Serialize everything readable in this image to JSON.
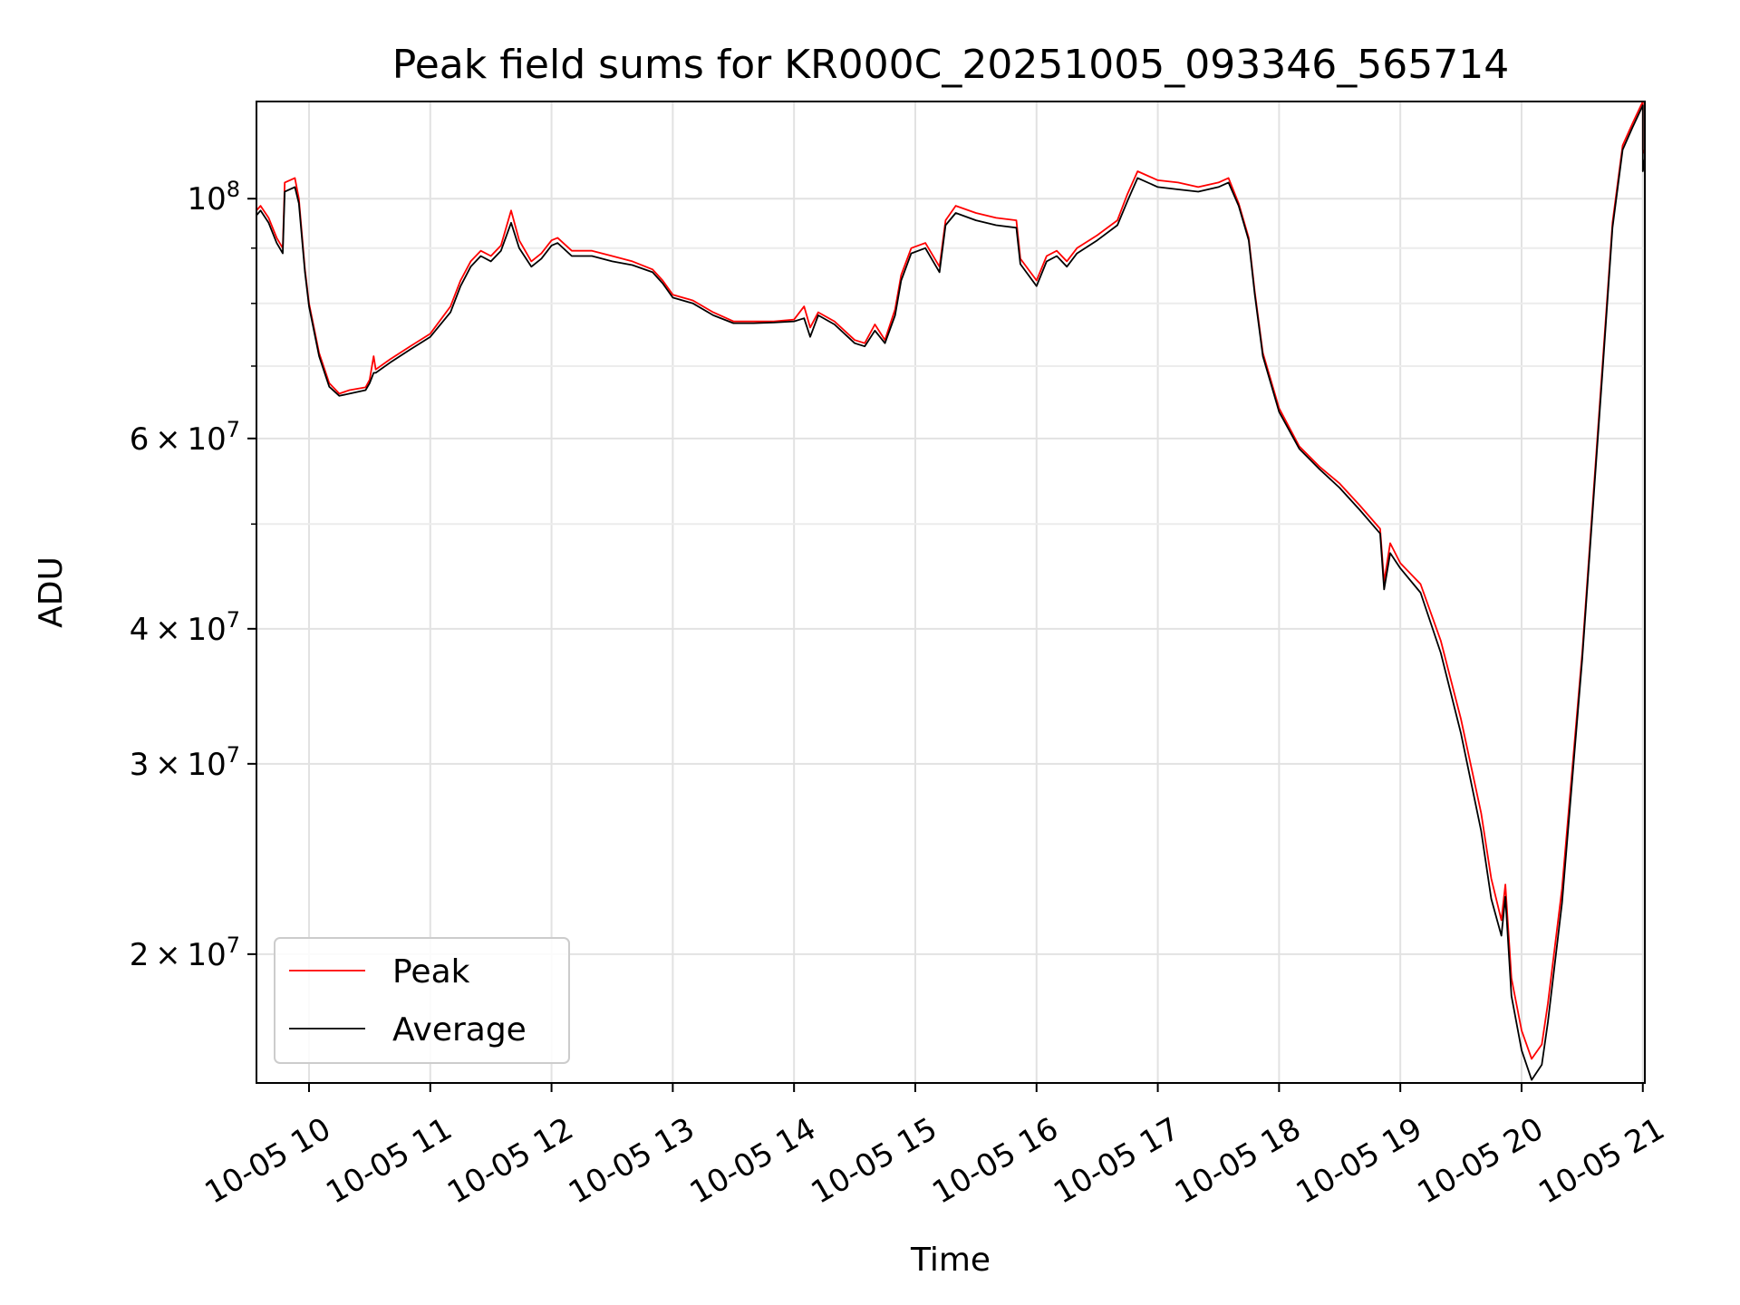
{
  "chart_data": {
    "type": "line",
    "title": "Peak field sums for KR000C_20251005_093346_565714",
    "xlabel": "Time",
    "ylabel": "ADU",
    "yscale": "log",
    "xlim": [
      "2025-10-05 09:34",
      "2025-10-05 21:01"
    ],
    "ylim": [
      15200000,
      123000000
    ],
    "grid": true,
    "legend_position": "lower-left",
    "x_tick_labels": [
      "10-05 10",
      "10-05 11",
      "10-05 12",
      "10-05 13",
      "10-05 14",
      "10-05 15",
      "10-05 16",
      "10-05 17",
      "10-05 18",
      "10-05 19",
      "10-05 20",
      "10-05 21"
    ],
    "x_tick_values": [
      "2025-10-05 10:00",
      "2025-10-05 11:00",
      "2025-10-05 12:00",
      "2025-10-05 13:00",
      "2025-10-05 14:00",
      "2025-10-05 15:00",
      "2025-10-05 16:00",
      "2025-10-05 17:00",
      "2025-10-05 18:00",
      "2025-10-05 19:00",
      "2025-10-05 20:00",
      "2025-10-05 21:00"
    ],
    "y_ticks_major": [
      {
        "value": 20000000,
        "mantissa": "2",
        "base": "10",
        "exp": "7"
      },
      {
        "value": 30000000,
        "mantissa": "3",
        "base": "10",
        "exp": "7"
      },
      {
        "value": 40000000,
        "mantissa": "4",
        "base": "10",
        "exp": "7"
      },
      {
        "value": 60000000,
        "mantissa": "6",
        "base": "10",
        "exp": "7"
      },
      {
        "value": 100000000,
        "mantissa": "",
        "base": "10",
        "exp": "8"
      }
    ],
    "y_ticks_minor": [
      50000000,
      70000000,
      80000000,
      90000000
    ],
    "series": [
      {
        "name": "Peak",
        "color": "#ff0000",
        "points": [
          [
            "2025-10-05 09:34",
            97500000
          ],
          [
            "2025-10-05 09:36",
            98500000
          ],
          [
            "2025-10-05 09:40",
            96000000
          ],
          [
            "2025-10-05 09:44",
            92000000
          ],
          [
            "2025-10-05 09:47",
            90000000
          ],
          [
            "2025-10-05 09:48",
            103500000
          ],
          [
            "2025-10-05 09:53",
            104500000
          ],
          [
            "2025-10-05 09:55",
            100000000
          ],
          [
            "2025-10-05 09:58",
            86000000
          ],
          [
            "2025-10-05 10:00",
            80000000
          ],
          [
            "2025-10-05 10:05",
            72000000
          ],
          [
            "2025-10-05 10:10",
            67500000
          ],
          [
            "2025-10-05 10:15",
            66000000
          ],
          [
            "2025-10-05 10:20",
            66500000
          ],
          [
            "2025-10-05 10:28",
            66900000
          ],
          [
            "2025-10-05 10:30",
            68000000
          ],
          [
            "2025-10-05 10:32",
            71500000
          ],
          [
            "2025-10-05 10:33",
            69500000
          ],
          [
            "2025-10-05 10:40",
            71000000
          ],
          [
            "2025-10-05 10:50",
            73000000
          ],
          [
            "2025-10-05 11:00",
            75000000
          ],
          [
            "2025-10-05 11:10",
            79500000
          ],
          [
            "2025-10-05 11:15",
            84000000
          ],
          [
            "2025-10-05 11:20",
            87500000
          ],
          [
            "2025-10-05 11:25",
            89500000
          ],
          [
            "2025-10-05 11:30",
            88500000
          ],
          [
            "2025-10-05 11:35",
            90500000
          ],
          [
            "2025-10-05 11:40",
            97500000
          ],
          [
            "2025-10-05 11:44",
            91500000
          ],
          [
            "2025-10-05 11:50",
            87500000
          ],
          [
            "2025-10-05 11:55",
            89000000
          ],
          [
            "2025-10-05 12:00",
            91500000
          ],
          [
            "2025-10-05 12:03",
            92000000
          ],
          [
            "2025-10-05 12:10",
            89500000
          ],
          [
            "2025-10-05 12:20",
            89500000
          ],
          [
            "2025-10-05 12:30",
            88500000
          ],
          [
            "2025-10-05 12:40",
            87500000
          ],
          [
            "2025-10-05 12:50",
            86000000
          ],
          [
            "2025-10-05 12:55",
            84000000
          ],
          [
            "2025-10-05 13:00",
            81500000
          ],
          [
            "2025-10-05 13:10",
            80500000
          ],
          [
            "2025-10-05 13:20",
            78500000
          ],
          [
            "2025-10-05 13:30",
            77000000
          ],
          [
            "2025-10-05 13:40",
            77000000
          ],
          [
            "2025-10-05 13:50",
            77000000
          ],
          [
            "2025-10-05 14:00",
            77300000
          ],
          [
            "2025-10-05 14:05",
            79500000
          ],
          [
            "2025-10-05 14:08",
            76000000
          ],
          [
            "2025-10-05 14:12",
            78500000
          ],
          [
            "2025-10-05 14:20",
            77000000
          ],
          [
            "2025-10-05 14:30",
            74000000
          ],
          [
            "2025-10-05 14:35",
            73500000
          ],
          [
            "2025-10-05 14:40",
            76500000
          ],
          [
            "2025-10-05 14:45",
            74000000
          ],
          [
            "2025-10-05 14:50",
            79000000
          ],
          [
            "2025-10-05 14:53",
            85000000
          ],
          [
            "2025-10-05 14:58",
            90000000
          ],
          [
            "2025-10-05 15:05",
            91000000
          ],
          [
            "2025-10-05 15:12",
            86500000
          ],
          [
            "2025-10-05 15:15",
            95500000
          ],
          [
            "2025-10-05 15:20",
            98500000
          ],
          [
            "2025-10-05 15:30",
            97000000
          ],
          [
            "2025-10-05 15:40",
            96000000
          ],
          [
            "2025-10-05 15:50",
            95500000
          ],
          [
            "2025-10-05 15:52",
            88000000
          ],
          [
            "2025-10-05 16:00",
            84000000
          ],
          [
            "2025-10-05 16:05",
            88500000
          ],
          [
            "2025-10-05 16:10",
            89500000
          ],
          [
            "2025-10-05 16:15",
            87500000
          ],
          [
            "2025-10-05 16:20",
            90000000
          ],
          [
            "2025-10-05 16:30",
            92500000
          ],
          [
            "2025-10-05 16:40",
            95500000
          ],
          [
            "2025-10-05 16:45",
            101000000
          ],
          [
            "2025-10-05 16:50",
            106000000
          ],
          [
            "2025-10-05 17:00",
            104000000
          ],
          [
            "2025-10-05 17:10",
            103500000
          ],
          [
            "2025-10-05 17:20",
            102500000
          ],
          [
            "2025-10-05 17:30",
            103500000
          ],
          [
            "2025-10-05 17:35",
            104500000
          ],
          [
            "2025-10-05 17:40",
            99000000
          ],
          [
            "2025-10-05 17:45",
            92000000
          ],
          [
            "2025-10-05 17:48",
            82000000
          ],
          [
            "2025-10-05 17:52",
            72000000
          ],
          [
            "2025-10-05 18:00",
            64000000
          ],
          [
            "2025-10-05 18:10",
            59000000
          ],
          [
            "2025-10-05 18:20",
            56500000
          ],
          [
            "2025-10-05 18:30",
            54500000
          ],
          [
            "2025-10-05 18:40",
            52000000
          ],
          [
            "2025-10-05 18:50",
            49500000
          ],
          [
            "2025-10-05 18:52",
            44200000
          ],
          [
            "2025-10-05 18:55",
            48000000
          ],
          [
            "2025-10-05 19:00",
            46000000
          ],
          [
            "2025-10-05 19:10",
            44000000
          ],
          [
            "2025-10-05 19:20",
            39000000
          ],
          [
            "2025-10-05 19:30",
            33000000
          ],
          [
            "2025-10-05 19:40",
            27000000
          ],
          [
            "2025-10-05 19:45",
            23500000
          ],
          [
            "2025-10-05 19:50",
            21500000
          ],
          [
            "2025-10-05 19:52",
            23200000
          ],
          [
            "2025-10-05 19:55",
            19000000
          ],
          [
            "2025-10-05 20:00",
            17000000
          ],
          [
            "2025-10-05 20:05",
            16000000
          ],
          [
            "2025-10-05 20:10",
            16500000
          ],
          [
            "2025-10-05 20:13",
            18000000
          ],
          [
            "2025-10-05 20:20",
            23000000
          ],
          [
            "2025-10-05 20:30",
            38000000
          ],
          [
            "2025-10-05 20:40",
            70000000
          ],
          [
            "2025-10-05 20:45",
            95000000
          ],
          [
            "2025-10-05 20:50",
            112000000
          ],
          [
            "2025-10-05 20:55",
            117500000
          ],
          [
            "2025-10-05 21:00",
            123000000
          ],
          [
            "2025-10-05 21:00",
            111000000
          ],
          [
            "2025-10-05 21:01",
            110000000
          ]
        ]
      },
      {
        "name": "Average",
        "color": "#000000",
        "points": [
          [
            "2025-10-05 09:34",
            96500000
          ],
          [
            "2025-10-05 09:36",
            97500000
          ],
          [
            "2025-10-05 09:40",
            95000000
          ],
          [
            "2025-10-05 09:44",
            91000000
          ],
          [
            "2025-10-05 09:47",
            89000000
          ],
          [
            "2025-10-05 09:48",
            101500000
          ],
          [
            "2025-10-05 09:53",
            102500000
          ],
          [
            "2025-10-05 09:55",
            99000000
          ],
          [
            "2025-10-05 09:58",
            85500000
          ],
          [
            "2025-10-05 10:00",
            79500000
          ],
          [
            "2025-10-05 10:05",
            71500000
          ],
          [
            "2025-10-05 10:10",
            67000000
          ],
          [
            "2025-10-05 10:15",
            65700000
          ],
          [
            "2025-10-05 10:20",
            66000000
          ],
          [
            "2025-10-05 10:28",
            66500000
          ],
          [
            "2025-10-05 10:30",
            67500000
          ],
          [
            "2025-10-05 10:32",
            69000000
          ],
          [
            "2025-10-05 10:33",
            69000000
          ],
          [
            "2025-10-05 10:40",
            70500000
          ],
          [
            "2025-10-05 10:50",
            72500000
          ],
          [
            "2025-10-05 11:00",
            74500000
          ],
          [
            "2025-10-05 11:10",
            78500000
          ],
          [
            "2025-10-05 11:15",
            83000000
          ],
          [
            "2025-10-05 11:20",
            86500000
          ],
          [
            "2025-10-05 11:25",
            88500000
          ],
          [
            "2025-10-05 11:30",
            87500000
          ],
          [
            "2025-10-05 11:35",
            89500000
          ],
          [
            "2025-10-05 11:40",
            95000000
          ],
          [
            "2025-10-05 11:44",
            90000000
          ],
          [
            "2025-10-05 11:50",
            86500000
          ],
          [
            "2025-10-05 11:55",
            88000000
          ],
          [
            "2025-10-05 12:00",
            90500000
          ],
          [
            "2025-10-05 12:03",
            91000000
          ],
          [
            "2025-10-05 12:10",
            88500000
          ],
          [
            "2025-10-05 12:20",
            88500000
          ],
          [
            "2025-10-05 12:30",
            87500000
          ],
          [
            "2025-10-05 12:40",
            86800000
          ],
          [
            "2025-10-05 12:50",
            85500000
          ],
          [
            "2025-10-05 12:55",
            83500000
          ],
          [
            "2025-10-05 13:00",
            81000000
          ],
          [
            "2025-10-05 13:10",
            80000000
          ],
          [
            "2025-10-05 13:20",
            78000000
          ],
          [
            "2025-10-05 13:30",
            76700000
          ],
          [
            "2025-10-05 13:40",
            76700000
          ],
          [
            "2025-10-05 13:50",
            76800000
          ],
          [
            "2025-10-05 14:00",
            77000000
          ],
          [
            "2025-10-05 14:05",
            77500000
          ],
          [
            "2025-10-05 14:08",
            74500000
          ],
          [
            "2025-10-05 14:12",
            78000000
          ],
          [
            "2025-10-05 14:20",
            76500000
          ],
          [
            "2025-10-05 14:30",
            73500000
          ],
          [
            "2025-10-05 14:35",
            73000000
          ],
          [
            "2025-10-05 14:40",
            75500000
          ],
          [
            "2025-10-05 14:45",
            73500000
          ],
          [
            "2025-10-05 14:50",
            78000000
          ],
          [
            "2025-10-05 14:53",
            84000000
          ],
          [
            "2025-10-05 14:58",
            89000000
          ],
          [
            "2025-10-05 15:05",
            90000000
          ],
          [
            "2025-10-05 15:12",
            85500000
          ],
          [
            "2025-10-05 15:15",
            94500000
          ],
          [
            "2025-10-05 15:20",
            97000000
          ],
          [
            "2025-10-05 15:30",
            95500000
          ],
          [
            "2025-10-05 15:40",
            94500000
          ],
          [
            "2025-10-05 15:50",
            94000000
          ],
          [
            "2025-10-05 15:52",
            87000000
          ],
          [
            "2025-10-05 16:00",
            83000000
          ],
          [
            "2025-10-05 16:05",
            87500000
          ],
          [
            "2025-10-05 16:10",
            88500000
          ],
          [
            "2025-10-05 16:15",
            86500000
          ],
          [
            "2025-10-05 16:20",
            89000000
          ],
          [
            "2025-10-05 16:30",
            91500000
          ],
          [
            "2025-10-05 16:40",
            94500000
          ],
          [
            "2025-10-05 16:45",
            99500000
          ],
          [
            "2025-10-05 16:50",
            104500000
          ],
          [
            "2025-10-05 17:00",
            102500000
          ],
          [
            "2025-10-05 17:10",
            102000000
          ],
          [
            "2025-10-05 17:20",
            101500000
          ],
          [
            "2025-10-05 17:30",
            102500000
          ],
          [
            "2025-10-05 17:35",
            103500000
          ],
          [
            "2025-10-05 17:40",
            98500000
          ],
          [
            "2025-10-05 17:45",
            91500000
          ],
          [
            "2025-10-05 17:48",
            81500000
          ],
          [
            "2025-10-05 17:52",
            71500000
          ],
          [
            "2025-10-05 18:00",
            63500000
          ],
          [
            "2025-10-05 18:10",
            58700000
          ],
          [
            "2025-10-05 18:20",
            56200000
          ],
          [
            "2025-10-05 18:30",
            54000000
          ],
          [
            "2025-10-05 18:40",
            51500000
          ],
          [
            "2025-10-05 18:50",
            49000000
          ],
          [
            "2025-10-05 18:52",
            43500000
          ],
          [
            "2025-10-05 18:55",
            47000000
          ],
          [
            "2025-10-05 19:00",
            45500000
          ],
          [
            "2025-10-05 19:10",
            43200000
          ],
          [
            "2025-10-05 19:20",
            38000000
          ],
          [
            "2025-10-05 19:30",
            32000000
          ],
          [
            "2025-10-05 19:40",
            26000000
          ],
          [
            "2025-10-05 19:45",
            22500000
          ],
          [
            "2025-10-05 19:50",
            20800000
          ],
          [
            "2025-10-05 19:52",
            22600000
          ],
          [
            "2025-10-05 19:55",
            18300000
          ],
          [
            "2025-10-05 20:00",
            16300000
          ],
          [
            "2025-10-05 20:05",
            15300000
          ],
          [
            "2025-10-05 20:10",
            15800000
          ],
          [
            "2025-10-05 20:13",
            17300000
          ],
          [
            "2025-10-05 20:20",
            22300000
          ],
          [
            "2025-10-05 20:30",
            37500000
          ],
          [
            "2025-10-05 20:40",
            69000000
          ],
          [
            "2025-10-05 20:45",
            94000000
          ],
          [
            "2025-10-05 20:50",
            111000000
          ],
          [
            "2025-10-05 20:55",
            116500000
          ],
          [
            "2025-10-05 21:00",
            122000000
          ],
          [
            "2025-10-05 21:00",
            106000000
          ],
          [
            "2025-10-05 21:01",
            109000000
          ]
        ]
      }
    ]
  }
}
